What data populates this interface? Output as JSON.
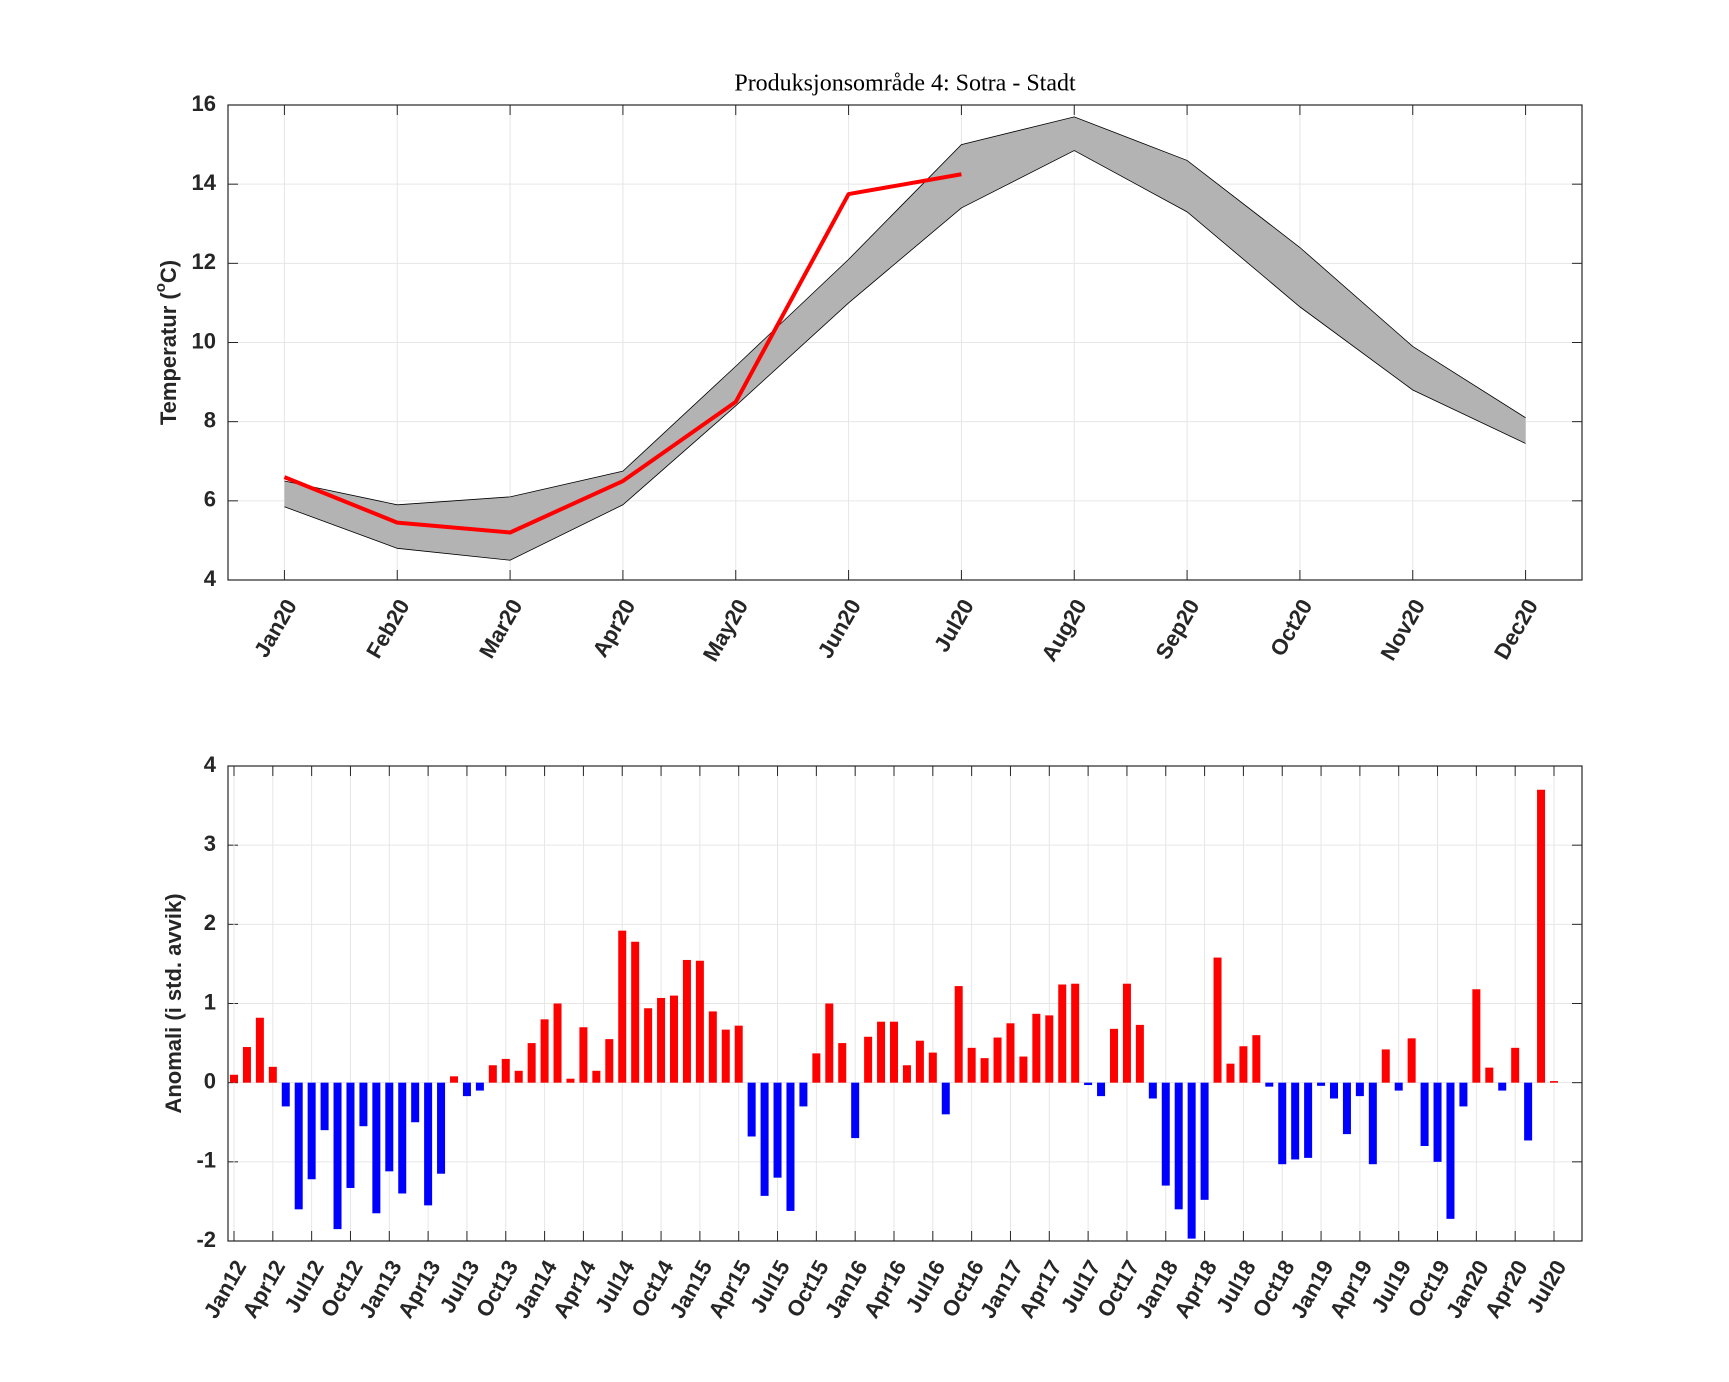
{
  "chart_data": [
    {
      "type": "band-line",
      "title": "Produksjonsområde 4: Sotra - Stadt",
      "ylabel_parts": [
        "Temperatur (",
        "o",
        "C)"
      ],
      "categories": [
        "Jan20",
        "Feb20",
        "Mar20",
        "Apr20",
        "May20",
        "Jun20",
        "Jul20",
        "Aug20",
        "Sep20",
        "Oct20",
        "Nov20",
        "Dec20"
      ],
      "band_upper": [
        6.5,
        5.9,
        6.1,
        6.75,
        9.4,
        12.1,
        15.0,
        15.7,
        14.6,
        12.4,
        9.9,
        8.1
      ],
      "band_lower": [
        5.85,
        4.8,
        4.5,
        5.9,
        8.4,
        11.0,
        13.4,
        14.85,
        13.3,
        10.9,
        8.8,
        7.45
      ],
      "band_color": "#b3b3b3",
      "values": [
        6.6,
        5.45,
        5.2,
        6.5,
        8.5,
        13.75,
        14.25,
        null,
        null,
        null,
        null,
        null
      ],
      "color": "#ff0000",
      "ylim": [
        4,
        16
      ],
      "yticks": [
        4,
        6,
        8,
        10,
        12,
        14,
        16
      ],
      "grid": true
    },
    {
      "type": "bar",
      "ylabel": "Anomali (i std. avvik)",
      "categories": [
        "Jan12",
        null,
        null,
        "Apr12",
        null,
        null,
        "Jul12",
        null,
        null,
        "Oct12",
        null,
        null,
        "Jan13",
        null,
        null,
        "Apr13",
        null,
        null,
        "Jul13",
        null,
        null,
        "Oct13",
        null,
        null,
        "Jan14",
        null,
        null,
        "Apr14",
        null,
        null,
        "Jul14",
        null,
        null,
        "Oct14",
        null,
        null,
        "Jan15",
        null,
        null,
        "Apr15",
        null,
        null,
        "Jul15",
        null,
        null,
        "Oct15",
        null,
        null,
        "Jan16",
        null,
        null,
        "Apr16",
        null,
        null,
        "Jul16",
        null,
        null,
        "Oct16",
        null,
        null,
        "Jan17",
        null,
        null,
        "Apr17",
        null,
        null,
        "Jul17",
        null,
        null,
        "Oct17",
        null,
        null,
        "Jan18",
        null,
        null,
        "Apr18",
        null,
        null,
        "Jul18",
        null,
        null,
        "Oct18",
        null,
        null,
        "Jan19",
        null,
        null,
        "Apr19",
        null,
        null,
        "Jul19",
        null,
        null,
        "Oct19",
        null,
        null,
        "Jan20",
        null,
        null,
        "Apr20",
        null,
        null,
        "Jul20"
      ],
      "values": [
        0.1,
        0.45,
        0.82,
        0.2,
        -0.3,
        -1.6,
        -1.22,
        -0.6,
        -1.85,
        -1.33,
        -0.55,
        -1.65,
        -1.12,
        -1.4,
        -0.5,
        -1.55,
        -1.15,
        0.08,
        -0.17,
        -0.1,
        0.22,
        0.3,
        0.15,
        0.5,
        0.8,
        1.0,
        0.05,
        0.7,
        0.15,
        0.55,
        1.92,
        1.78,
        0.94,
        1.07,
        1.1,
        1.55,
        1.54,
        0.9,
        0.67,
        0.72,
        -0.68,
        -1.43,
        -1.2,
        -1.62,
        -0.3,
        0.37,
        1.0,
        0.5,
        -0.7,
        0.58,
        0.77,
        0.77,
        0.22,
        0.53,
        0.38,
        -0.4,
        1.22,
        0.44,
        0.31,
        0.57,
        0.75,
        0.33,
        0.87,
        0.85,
        1.24,
        1.25,
        -0.03,
        -0.17,
        0.68,
        1.25,
        0.73,
        -0.2,
        -1.3,
        -1.6,
        -1.97,
        -1.48,
        1.58,
        0.24,
        0.46,
        0.6,
        -0.05,
        -1.03,
        -0.97,
        -0.95,
        -0.04,
        -0.2,
        -0.65,
        -0.17,
        -1.03,
        0.42,
        -0.1,
        0.56,
        -0.8,
        -1.0,
        -1.72,
        -0.3,
        1.18,
        0.19,
        -0.1,
        0.44,
        -0.73,
        3.7,
        0.02
      ],
      "positive_color": "#ff0000",
      "negative_color": "#0000ff",
      "ylim": [
        -2,
        4
      ],
      "yticks": [
        -2,
        -1,
        0,
        1,
        2,
        3,
        4
      ],
      "grid": true
    }
  ]
}
